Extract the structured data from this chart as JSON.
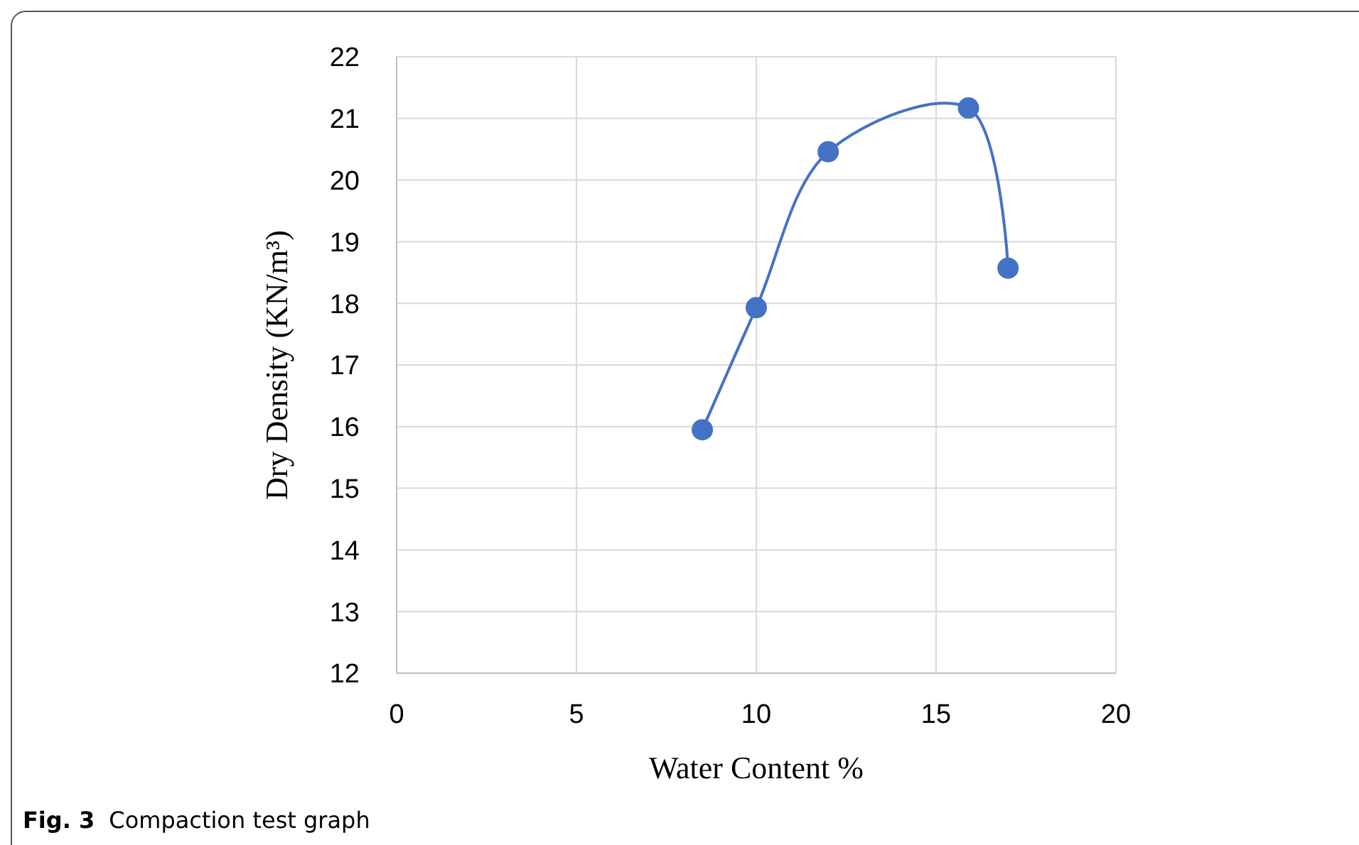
{
  "chart_data": {
    "type": "line",
    "xlabel": "Water Content %",
    "ylabel": "Dry Density (KN/m³)",
    "annotations": [
      "Fig. 3",
      "Compaction test graph"
    ],
    "x": [
      8.5,
      10,
      12,
      15.9,
      17
    ],
    "series": [
      {
        "color": "#4472c4",
        "values": [
          15.95,
          17.93,
          20.46,
          21.17,
          18.57
        ]
      }
    ],
    "xlim": [
      0,
      20
    ],
    "xticks": [
      0,
      5,
      10,
      15,
      20
    ],
    "ylim": [
      12,
      22
    ],
    "yticks": [
      12,
      13,
      14,
      15,
      16,
      17,
      18,
      19,
      20,
      21,
      22
    ],
    "grid": true,
    "marker": "circle",
    "line_style": "solid"
  }
}
